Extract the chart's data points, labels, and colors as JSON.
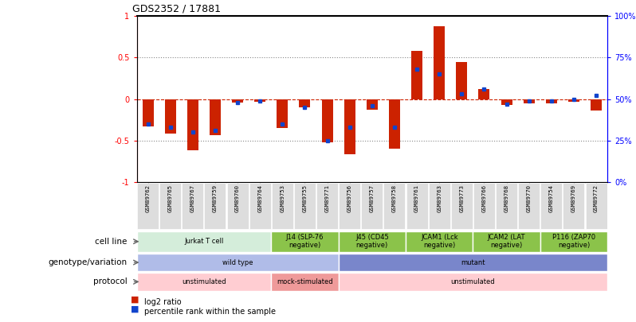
{
  "title": "GDS2352 / 17881",
  "samples": [
    "GSM89762",
    "GSM89765",
    "GSM89767",
    "GSM89759",
    "GSM89760",
    "GSM89764",
    "GSM89753",
    "GSM89755",
    "GSM89771",
    "GSM89756",
    "GSM89757",
    "GSM89758",
    "GSM89761",
    "GSM89763",
    "GSM89773",
    "GSM89766",
    "GSM89768",
    "GSM89770",
    "GSM89754",
    "GSM89769",
    "GSM89772"
  ],
  "log2_ratio": [
    -0.33,
    -0.42,
    -0.62,
    -0.44,
    -0.04,
    -0.03,
    -0.35,
    -0.1,
    -0.52,
    -0.67,
    -0.13,
    -0.6,
    0.58,
    0.88,
    0.45,
    0.12,
    -0.07,
    -0.05,
    -0.05,
    -0.03,
    -0.14
  ],
  "percentile": [
    35,
    33,
    30,
    31,
    48,
    49,
    35,
    45,
    25,
    33,
    46,
    33,
    68,
    65,
    53,
    56,
    47,
    49,
    49,
    50,
    52
  ],
  "cell_lines": [
    {
      "label": "Jurkat T cell",
      "start": 0,
      "end": 6,
      "color": "#d4edda"
    },
    {
      "label": "J14 (SLP-76\nnegative)",
      "start": 6,
      "end": 9,
      "color": "#8bc34a"
    },
    {
      "label": "J45 (CD45\nnegative)",
      "start": 9,
      "end": 12,
      "color": "#8bc34a"
    },
    {
      "label": "JCAM1 (Lck\nnegative)",
      "start": 12,
      "end": 15,
      "color": "#8bc34a"
    },
    {
      "label": "JCAM2 (LAT\nnegative)",
      "start": 15,
      "end": 18,
      "color": "#8bc34a"
    },
    {
      "label": "P116 (ZAP70\nnegative)",
      "start": 18,
      "end": 21,
      "color": "#8bc34a"
    }
  ],
  "genotype_variations": [
    {
      "label": "wild type",
      "start": 0,
      "end": 9,
      "color": "#b0bce8"
    },
    {
      "label": "mutant",
      "start": 9,
      "end": 21,
      "color": "#7986cb"
    }
  ],
  "protocols": [
    {
      "label": "unstimulated",
      "start": 0,
      "end": 6,
      "color": "#ffcdd2"
    },
    {
      "label": "mock-stimulated",
      "start": 6,
      "end": 9,
      "color": "#ef9a9a"
    },
    {
      "label": "unstimulated",
      "start": 9,
      "end": 21,
      "color": "#ffcdd2"
    }
  ],
  "bar_color_red": "#cc2200",
  "bar_color_blue": "#1144cc",
  "zero_line_color": "#cc2200",
  "tick_box_color": "#dddddd",
  "row_label_fontsize": 7.5,
  "bar_width": 0.5
}
